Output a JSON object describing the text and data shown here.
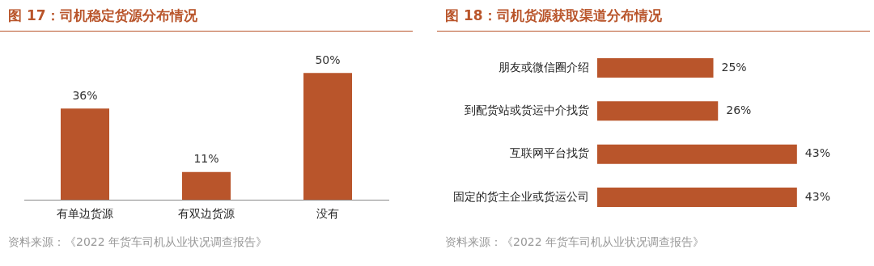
{
  "chart_data": [
    {
      "type": "bar",
      "title": "图 17：司机稳定货源分布情况",
      "categories": [
        "有单边货源",
        "有双边货源",
        "没有"
      ],
      "values": [
        36,
        11,
        50
      ],
      "color": "#b9552b",
      "value_labels": [
        "36%",
        "11%",
        "50%"
      ],
      "annotations": [
        "资料来源：《2022 年货车司机从业状况调查报告》"
      ]
    },
    {
      "type": "bar",
      "orientation": "horizontal",
      "title": "图 18：司机货源获取渠道分布情况",
      "categories": [
        "朋友或微信圈介绍",
        "到配货站或货运中介找货",
        "互联网平台找货",
        "固定的货主企业或货运公司"
      ],
      "values": [
        25,
        26,
        43,
        43
      ],
      "color": "#b9552b",
      "value_labels": [
        "25%",
        "26%",
        "43%",
        "43%"
      ],
      "annotations": [
        "资料来源：《2022 年货车司机从业状况调查报告》"
      ]
    }
  ]
}
